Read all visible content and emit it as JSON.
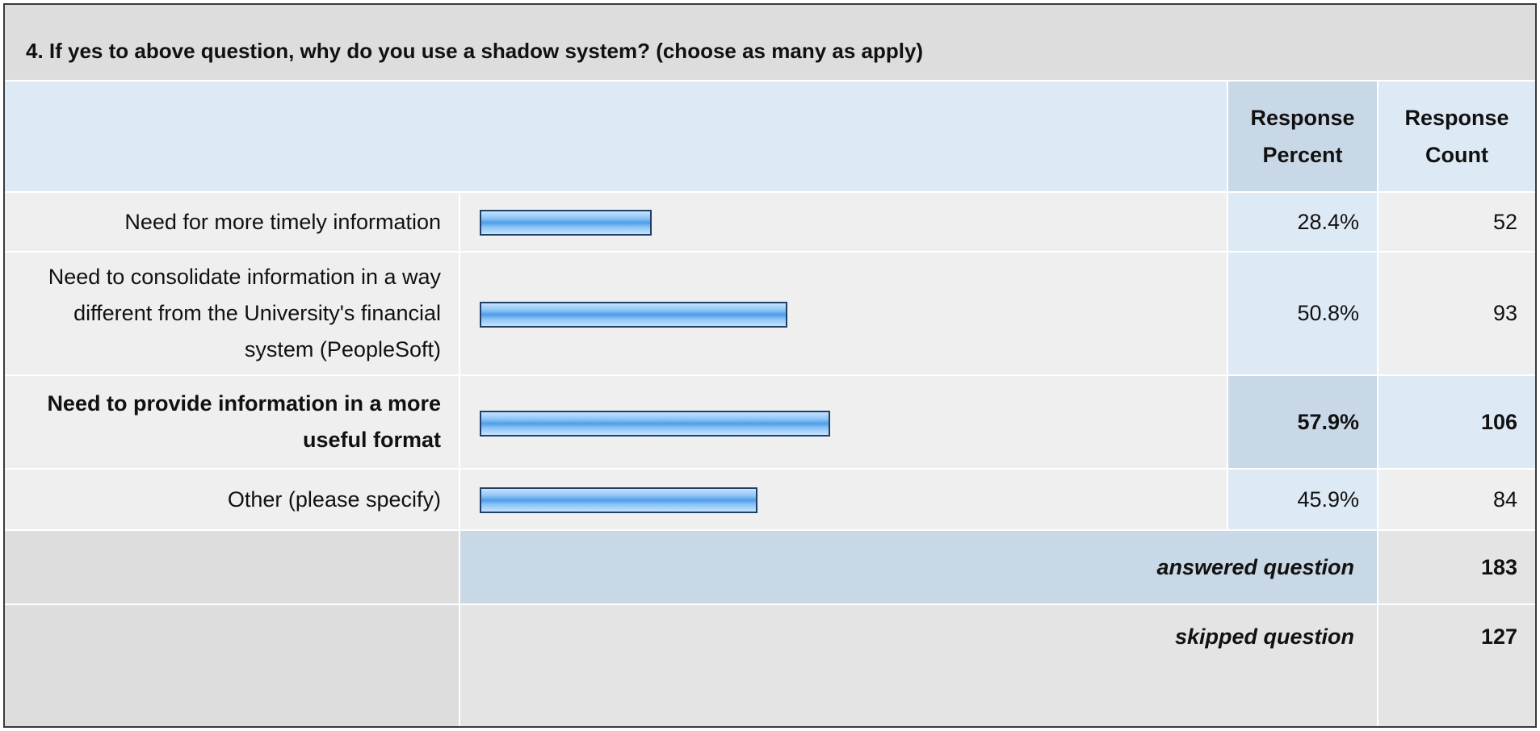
{
  "title": "4. If yes to above question, why do you use a shadow system? (choose as many as apply)",
  "headers": {
    "percent": "Response Percent",
    "count": "Response Count"
  },
  "colors": {
    "bar": "#4f9de6",
    "bar_border": "#1f3f66",
    "header_bg": "#dde9f5",
    "highlight_bg": "#c9d8e6"
  },
  "chart_data": {
    "type": "bar",
    "orientation": "horizontal",
    "xlim": [
      0,
      100
    ],
    "categories": [
      "Need for more timely information",
      "Need to consolidate information in a way different from the University's financial system (PeopleSoft)",
      "Need to provide information in a more useful format",
      "Other (please specify)"
    ],
    "rows": [
      {
        "label": "Need for more timely information",
        "percent": 28.4,
        "percent_label": "28.4%",
        "count": "52",
        "highlight": false
      },
      {
        "label": "Need to consolidate information in a way different from the University's financial system (PeopleSoft)",
        "percent": 50.8,
        "percent_label": "50.8%",
        "count": "93",
        "highlight": false
      },
      {
        "label": "Need to provide information in a more useful format",
        "percent": 57.9,
        "percent_label": "57.9%",
        "count": "106",
        "highlight": true
      },
      {
        "label": "Other (please specify)",
        "percent": 45.9,
        "percent_label": "45.9%",
        "count": "84",
        "highlight": false
      }
    ],
    "summary": {
      "answered_label": "answered question",
      "answered": "183",
      "skipped_label": "skipped question",
      "skipped": "127"
    }
  }
}
